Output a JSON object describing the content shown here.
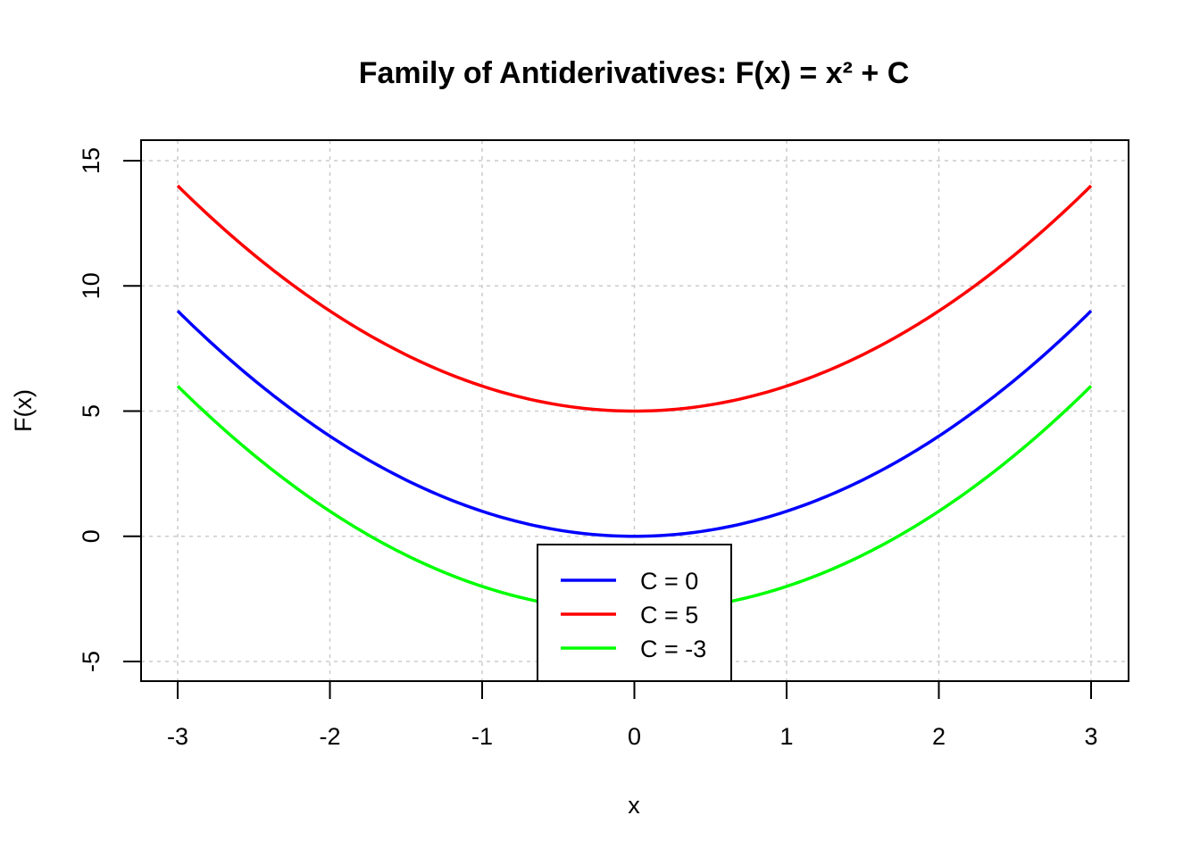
{
  "chart_data": {
    "type": "line",
    "title": "Family of Antiderivatives: F(x) = x² + C",
    "xlabel": "x",
    "ylabel": "F(x)",
    "xlim": [
      -3,
      3
    ],
    "ylim": [
      -5,
      15
    ],
    "xticks": [
      -3,
      -2,
      -1,
      0,
      1,
      2,
      3
    ],
    "yticks": [
      -5,
      0,
      5,
      10,
      15
    ],
    "xtick_labels": [
      "-3",
      "-2",
      "-1",
      "0",
      "1",
      "2",
      "3"
    ],
    "ytick_labels": [
      "-5",
      "0",
      "5",
      "10",
      "15"
    ],
    "grid": true,
    "legend_position": "bottom-center",
    "series": [
      {
        "name": "C = 0",
        "color": "#0000ff",
        "constant": 0
      },
      {
        "name": "C = 5",
        "color": "#ff0000",
        "constant": 5
      },
      {
        "name": "C = -3",
        "color": "#00ff00",
        "constant": -3
      }
    ]
  }
}
